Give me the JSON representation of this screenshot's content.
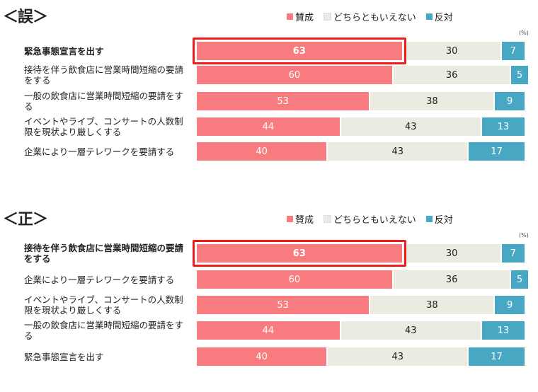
{
  "colors": {
    "agree": "#f87b7f",
    "neutral": "#ecebe1",
    "oppose": "#48a8c4",
    "highlight": "#f01c1c"
  },
  "chart_data": [
    {
      "type": "bar",
      "stacked": true,
      "orientation": "horizontal",
      "title": "＜誤＞",
      "unit": "(%)",
      "xlim": [
        0,
        100
      ],
      "legend_position": "top",
      "highlighted_category_index": 0,
      "categories": [
        "緊急事態宣言を出す",
        "接待を伴う飲食店に営業時間短縮の要請をする",
        "一般の飲食店に営業時間短縮の要請をする",
        "イベントやライブ、コンサートの人数制限を現状より厳しくする",
        "企業により一層テレワークを要請する"
      ],
      "series": [
        {
          "name": "賛成",
          "values": [
            63,
            60,
            53,
            44,
            40
          ]
        },
        {
          "name": "どちらともいえない",
          "values": [
            30,
            36,
            38,
            43,
            43
          ]
        },
        {
          "name": "反対",
          "values": [
            7,
            5,
            9,
            13,
            17
          ]
        }
      ]
    },
    {
      "type": "bar",
      "stacked": true,
      "orientation": "horizontal",
      "title": "＜正＞",
      "unit": "(%)",
      "xlim": [
        0,
        100
      ],
      "legend_position": "top",
      "highlighted_category_index": 0,
      "categories": [
        "接待を伴う飲食店に営業時間短縮の要請をする",
        "企業により一層テレワークを要請する",
        "イベントやライブ、コンサートの人数制限を現状より厳しくする",
        "一般の飲食店に営業時間短縮の要請をする",
        "緊急事態宣言を出す"
      ],
      "series": [
        {
          "name": "賛成",
          "values": [
            63,
            60,
            53,
            44,
            40
          ]
        },
        {
          "name": "どちらともいえない",
          "values": [
            30,
            36,
            38,
            43,
            43
          ]
        },
        {
          "name": "反対",
          "values": [
            7,
            5,
            9,
            13,
            17
          ]
        }
      ]
    }
  ]
}
